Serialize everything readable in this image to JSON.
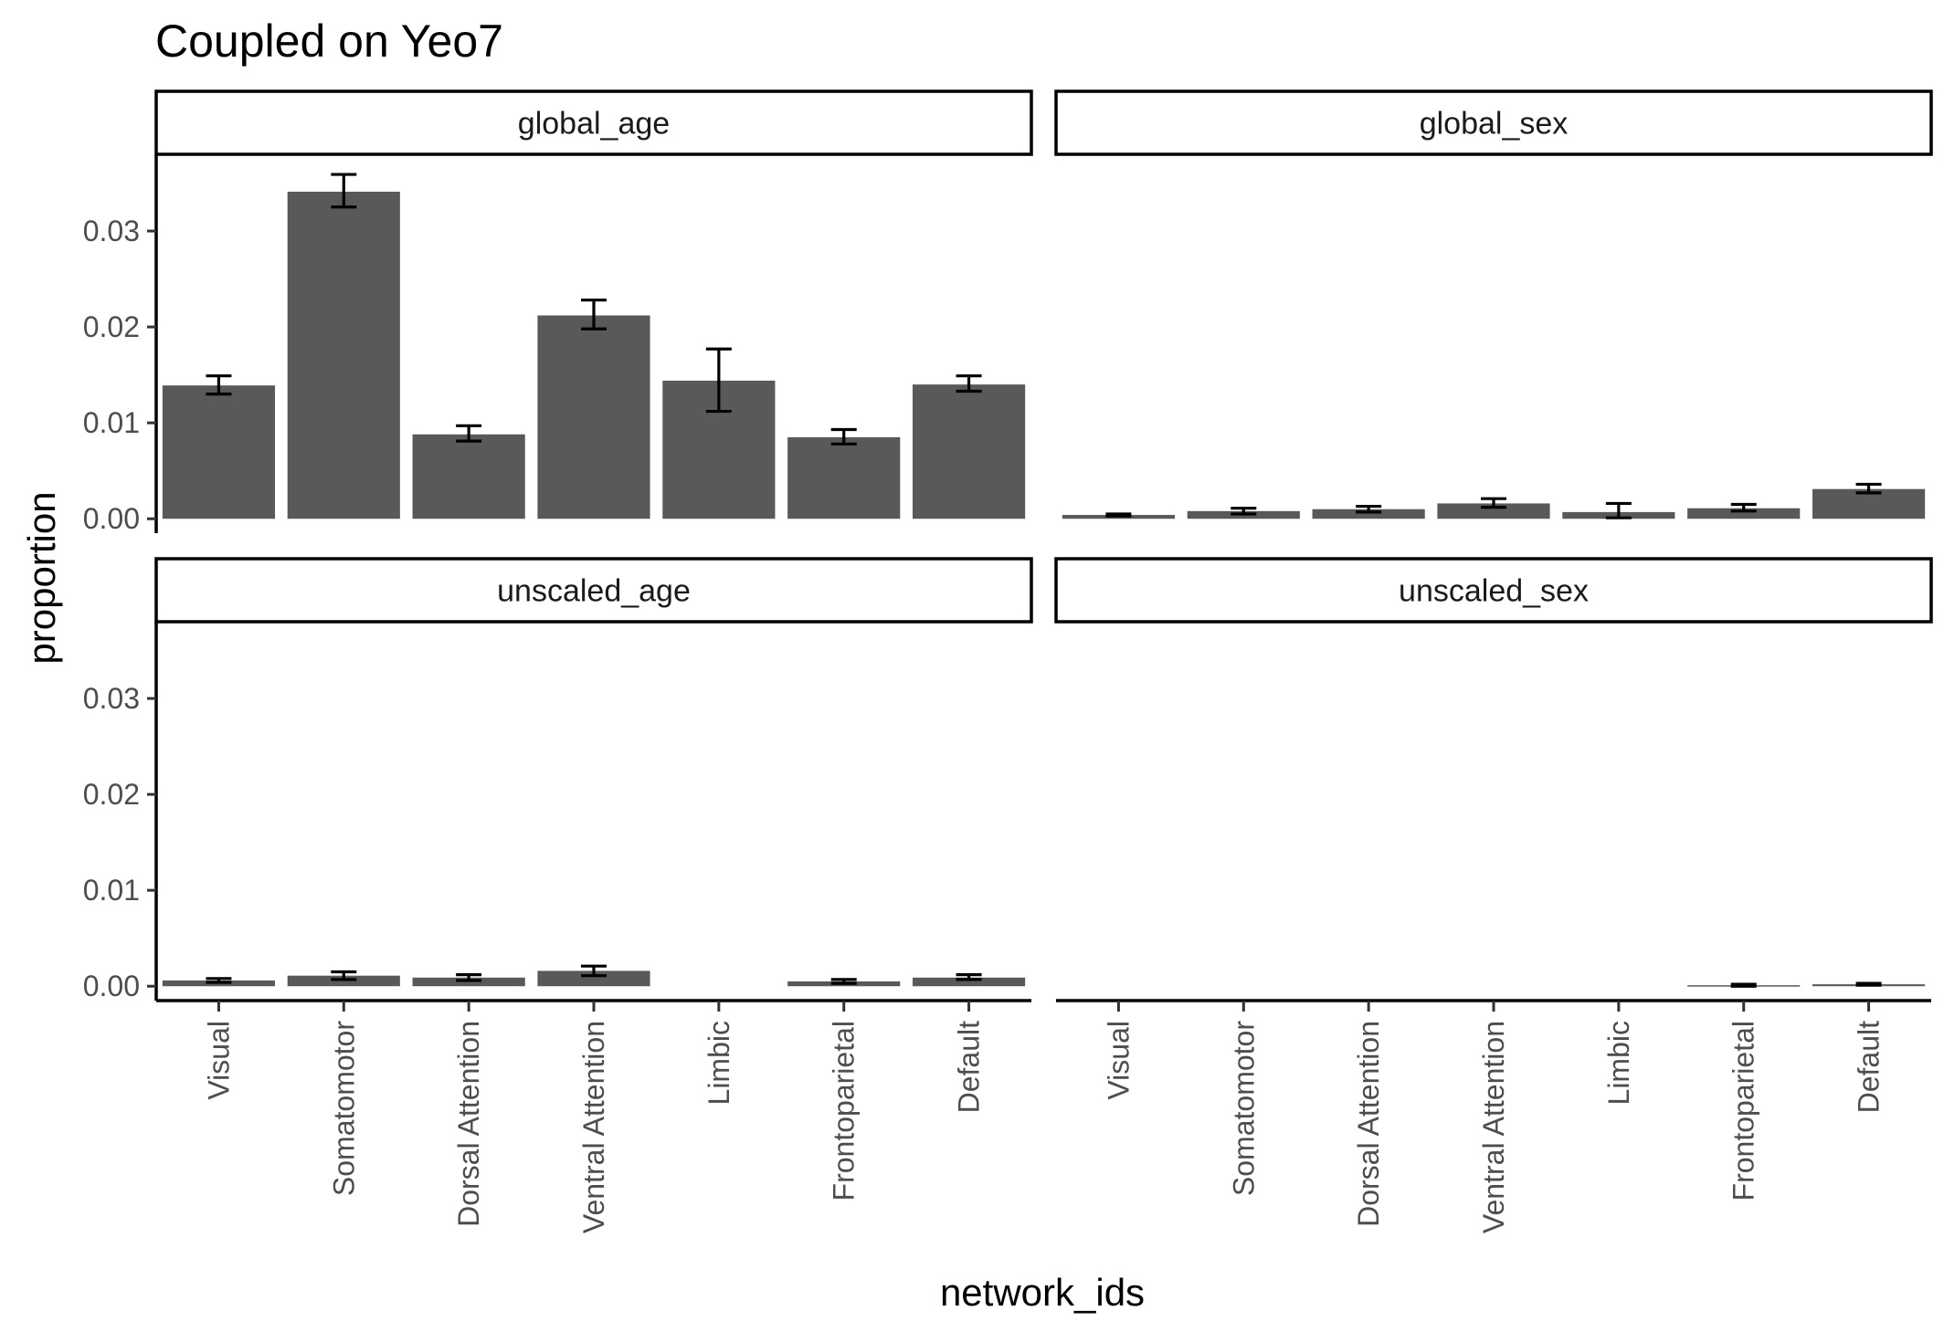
{
  "chart_data": {
    "type": "bar",
    "title": "Coupled on Yeo7",
    "xlabel": "network_ids",
    "ylabel": "proportion",
    "categories": [
      "Visual",
      "Somatomotor",
      "Dorsal Attention",
      "Ventral Attention",
      "Limbic",
      "Frontoparietal",
      "Default"
    ],
    "yticks": [
      "0.00",
      "0.01",
      "0.02",
      "0.03"
    ],
    "ylim": [
      -0.0015,
      0.038
    ],
    "grid": false,
    "bar_color": "#595959",
    "error_bars": true,
    "facets": [
      {
        "name": "global_age",
        "values": [
          0.0139,
          0.0341,
          0.0088,
          0.0212,
          0.0144,
          0.0085,
          0.014
        ],
        "lower": [
          0.013,
          0.0325,
          0.0081,
          0.0198,
          0.0112,
          0.0078,
          0.0133
        ],
        "upper": [
          0.0149,
          0.0359,
          0.0097,
          0.0228,
          0.0177,
          0.0093,
          0.0149
        ]
      },
      {
        "name": "global_sex",
        "values": [
          0.0004,
          0.0008,
          0.001,
          0.0016,
          0.0007,
          0.0011,
          0.0031
        ],
        "lower": [
          0.0003,
          0.0005,
          0.0007,
          0.0012,
          0.0001,
          0.0008,
          0.0027
        ],
        "upper": [
          0.0005,
          0.0011,
          0.0013,
          0.0021,
          0.0016,
          0.0015,
          0.0036
        ]
      },
      {
        "name": "unscaled_age",
        "values": [
          0.0006,
          0.0011,
          0.0009,
          0.0016,
          null,
          0.0005,
          0.0009
        ],
        "lower": [
          0.0004,
          0.0007,
          0.0006,
          0.0011,
          null,
          0.0003,
          0.0007
        ],
        "upper": [
          0.0008,
          0.0015,
          0.0012,
          0.0021,
          null,
          0.0007,
          0.0012
        ]
      },
      {
        "name": "unscaled_sex",
        "values": [
          null,
          null,
          null,
          null,
          null,
          0.0001,
          0.0002
        ],
        "lower": [
          null,
          null,
          null,
          null,
          null,
          0.0,
          0.0001
        ],
        "upper": [
          null,
          null,
          null,
          null,
          null,
          0.0002,
          0.0003
        ]
      }
    ]
  }
}
